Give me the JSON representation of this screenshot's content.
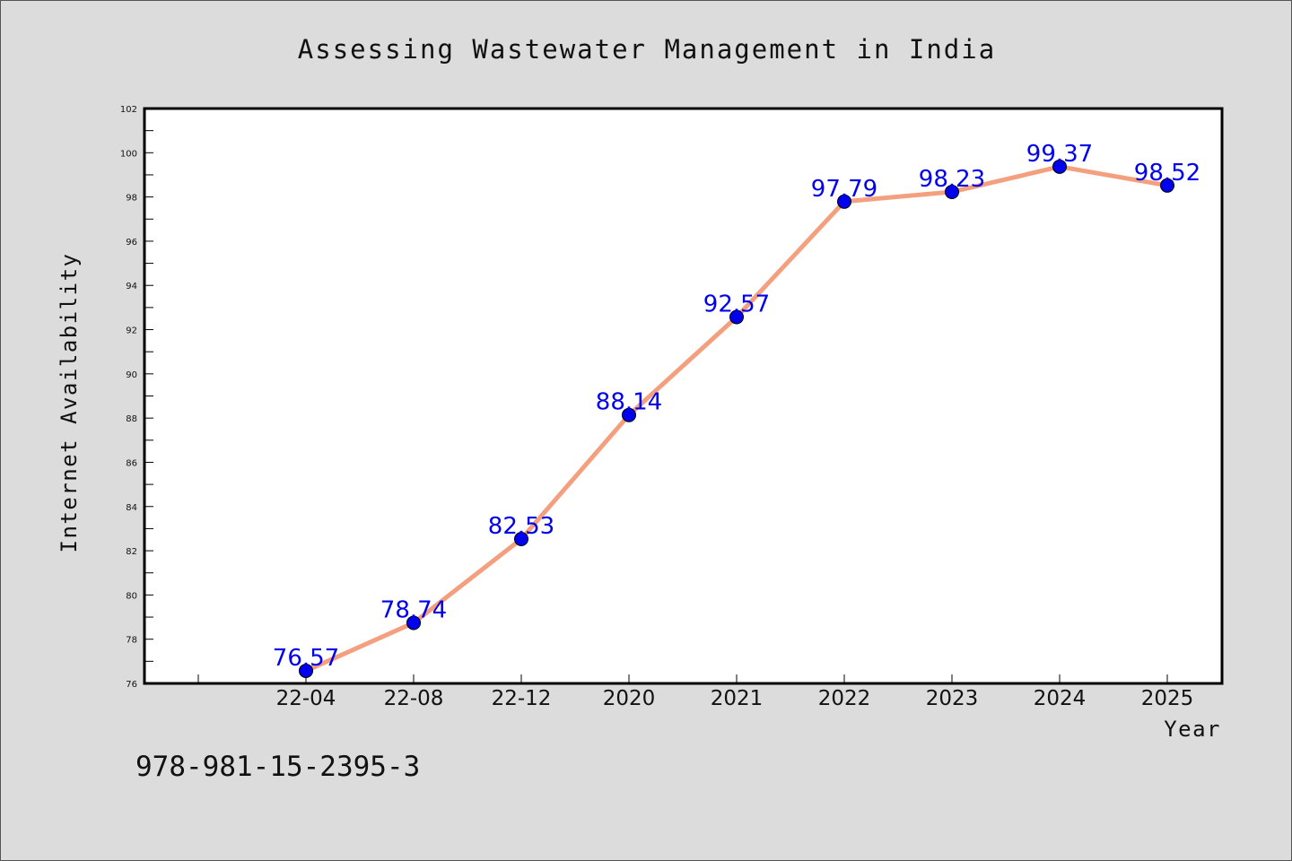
{
  "chart_data": {
    "type": "line",
    "title": "Assessing Wastewater Management in India",
    "xlabel": "Year",
    "ylabel": "Internet Availability",
    "categories": [
      "22-04",
      "22-08",
      "22-12",
      "2020",
      "2021",
      "2022",
      "2023",
      "2024",
      "2025"
    ],
    "series": [
      {
        "values": [
          76.57,
          78.74,
          82.53,
          88.14,
          92.57,
          97.79,
          98.23,
          99.37,
          98.52
        ]
      }
    ],
    "data_labels": [
      "76.57",
      "78.74",
      "82.53",
      "88.14",
      "92.57",
      "97.79",
      "98.23",
      "99.37",
      "98.52"
    ],
    "ylim": [
      76,
      102
    ],
    "yticks": [
      76,
      78,
      80,
      82,
      84,
      86,
      88,
      90,
      92,
      94,
      96,
      98,
      100,
      102
    ],
    "grid": false,
    "line_color": "#f4a07e",
    "marker_color": "#0000ee",
    "label_color": "#0000ee",
    "footnote": "978-981-15-2395-3"
  }
}
